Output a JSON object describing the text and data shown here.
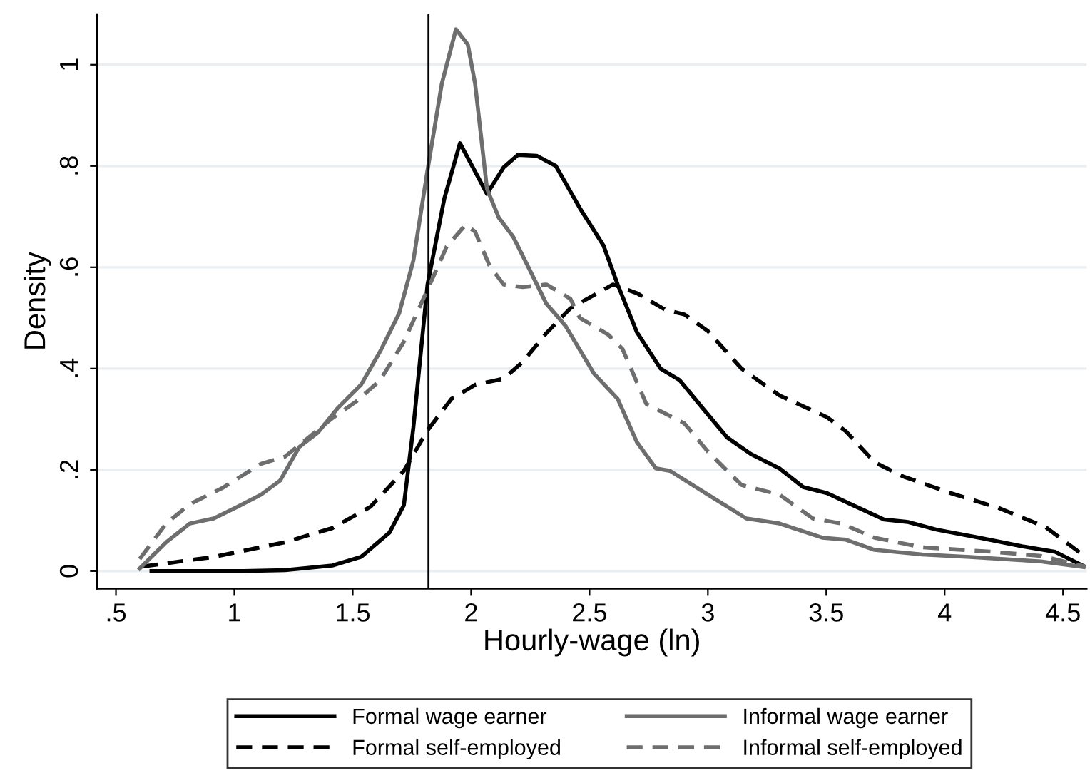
{
  "chart_data": {
    "type": "line",
    "xlabel": "Hourly-wage (ln)",
    "ylabel": "Density",
    "xlim": [
      0.42,
      4.6
    ],
    "ylim": [
      -0.035,
      1.1
    ],
    "xticks": [
      {
        "value": 0.5,
        "label": ".5"
      },
      1,
      1.5,
      2,
      2.5,
      3,
      3.5,
      4,
      4.5
    ],
    "yticks": [
      0,
      {
        "value": 0.2,
        "label": ".2"
      },
      {
        "value": 0.4,
        "label": ".4"
      },
      {
        "value": 0.6,
        "label": ".6"
      },
      {
        "value": 0.8,
        "label": ".8"
      },
      1
    ],
    "grid": "y",
    "legend": "bottom",
    "ref_lines": [
      {
        "axis": "x",
        "value": 1.82,
        "color": "#000000"
      }
    ],
    "series": [
      {
        "name": "Formal wage earner",
        "color": "#000000",
        "line_style": "solid",
        "x": [
          0.65,
          1.04,
          1.214,
          1.414,
          1.535,
          1.655,
          1.716,
          1.756,
          1.816,
          1.887,
          1.953,
          2.067,
          2.137,
          2.198,
          2.278,
          2.358,
          2.459,
          2.559,
          2.619,
          2.7,
          2.8,
          2.881,
          2.981,
          3.081,
          3.182,
          3.302,
          3.402,
          3.503,
          3.604,
          3.744,
          3.845,
          3.965,
          4.146,
          4.327,
          4.467,
          4.587
        ],
        "values": [
          0.0,
          0.0,
          0.002,
          0.011,
          0.028,
          0.076,
          0.13,
          0.283,
          0.566,
          0.736,
          0.845,
          0.745,
          0.797,
          0.822,
          0.82,
          0.8,
          0.717,
          0.643,
          0.566,
          0.472,
          0.4,
          0.377,
          0.32,
          0.264,
          0.231,
          0.203,
          0.166,
          0.154,
          0.132,
          0.102,
          0.097,
          0.082,
          0.066,
          0.049,
          0.038,
          0.01
        ]
      },
      {
        "name": "Formal self-employed",
        "color": "#000000",
        "line_style": "dashed",
        "x": [
          0.61,
          0.913,
          1.214,
          1.414,
          1.575,
          1.716,
          1.816,
          1.917,
          2.017,
          2.137,
          2.218,
          2.318,
          2.419,
          2.599,
          2.7,
          2.82,
          2.9,
          3.0,
          3.142,
          3.302,
          3.503,
          3.583,
          3.704,
          3.824,
          4.025,
          4.226,
          4.426,
          4.587
        ],
        "values": [
          0.009,
          0.028,
          0.057,
          0.085,
          0.127,
          0.198,
          0.278,
          0.34,
          0.368,
          0.38,
          0.413,
          0.47,
          0.519,
          0.566,
          0.549,
          0.516,
          0.507,
          0.474,
          0.4,
          0.347,
          0.304,
          0.276,
          0.215,
          0.187,
          0.154,
          0.125,
          0.087,
          0.031
        ]
      },
      {
        "name": "Informal wage earner",
        "color": "#6e6e6e",
        "line_style": "solid",
        "x": [
          0.6,
          0.712,
          0.812,
          0.913,
          1.013,
          1.113,
          1.194,
          1.274,
          1.354,
          1.435,
          1.535,
          1.616,
          1.696,
          1.756,
          1.816,
          1.876,
          1.936,
          1.986,
          2.017,
          2.067,
          2.117,
          2.178,
          2.238,
          2.318,
          2.399,
          2.519,
          2.619,
          2.7,
          2.78,
          2.84,
          3.0,
          3.162,
          3.302,
          3.483,
          3.583,
          3.704,
          3.905,
          4.106,
          4.406,
          4.587
        ],
        "values": [
          0.005,
          0.057,
          0.094,
          0.104,
          0.127,
          0.151,
          0.179,
          0.245,
          0.274,
          0.321,
          0.368,
          0.434,
          0.509,
          0.613,
          0.792,
          0.962,
          1.07,
          1.04,
          0.962,
          0.755,
          0.698,
          0.66,
          0.604,
          0.528,
          0.484,
          0.39,
          0.34,
          0.255,
          0.203,
          0.198,
          0.151,
          0.104,
          0.094,
          0.066,
          0.062,
          0.042,
          0.033,
          0.028,
          0.019,
          0.008
        ]
      },
      {
        "name": "Informal self-employed",
        "color": "#6e6e6e",
        "line_style": "dashed",
        "x": [
          0.6,
          0.712,
          0.812,
          0.953,
          1.113,
          1.214,
          1.314,
          1.414,
          1.515,
          1.616,
          1.716,
          1.816,
          1.897,
          1.977,
          2.017,
          2.077,
          2.137,
          2.218,
          2.318,
          2.419,
          2.459,
          2.579,
          2.639,
          2.74,
          2.82,
          2.9,
          3.0,
          3.142,
          3.302,
          3.443,
          3.563,
          3.704,
          3.905,
          4.206,
          4.406,
          4.587
        ],
        "values": [
          0.024,
          0.094,
          0.132,
          0.165,
          0.212,
          0.226,
          0.264,
          0.302,
          0.335,
          0.377,
          0.453,
          0.556,
          0.641,
          0.684,
          0.67,
          0.604,
          0.566,
          0.561,
          0.566,
          0.538,
          0.5,
          0.467,
          0.439,
          0.33,
          0.311,
          0.292,
          0.236,
          0.17,
          0.151,
          0.104,
          0.094,
          0.066,
          0.047,
          0.038,
          0.03,
          0.01
        ]
      }
    ]
  }
}
